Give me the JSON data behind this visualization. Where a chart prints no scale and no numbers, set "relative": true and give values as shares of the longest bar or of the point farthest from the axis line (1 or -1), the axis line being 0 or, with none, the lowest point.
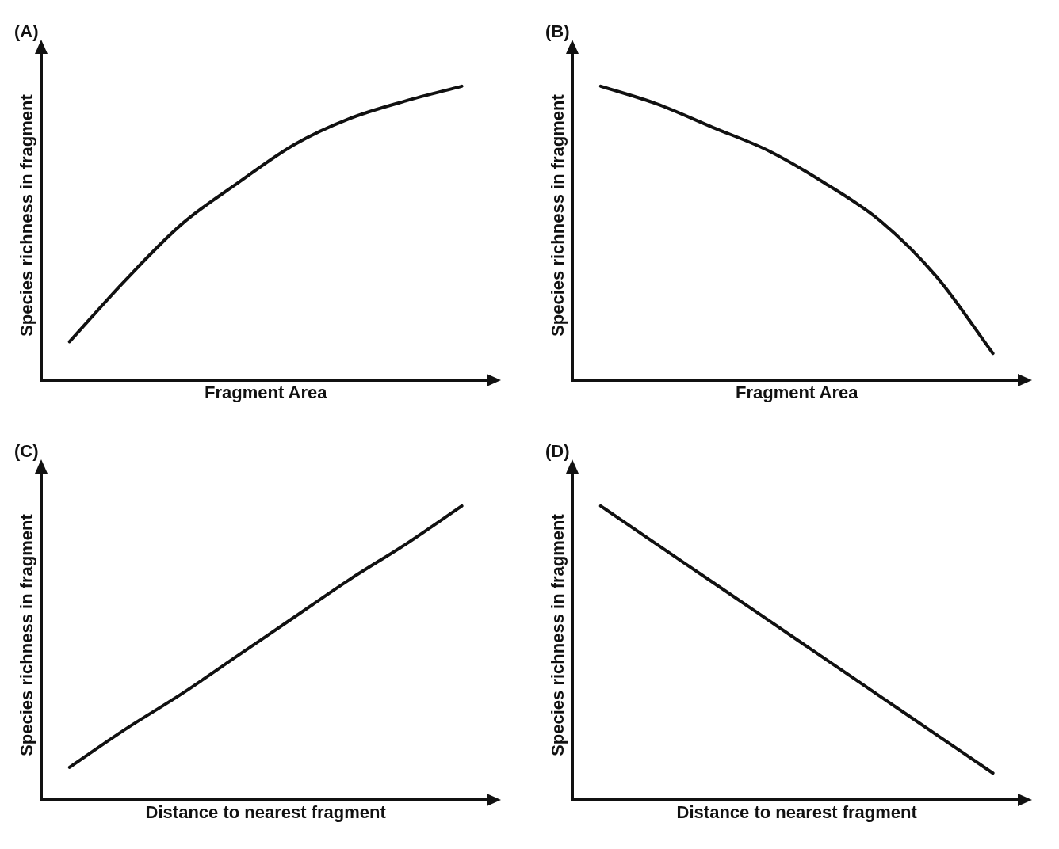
{
  "chart_data": [
    {
      "type": "line",
      "title": "(A)",
      "xlabel": "Fragment Area",
      "ylabel": "Species richness in fragment",
      "relative": true,
      "tick_labels": false,
      "categories": [
        null,
        null,
        null,
        null,
        null,
        null,
        null,
        null
      ],
      "series": [
        {
          "color": "#111111",
          "values": [
            0.13,
            0.34,
            0.53,
            0.67,
            0.8,
            0.89,
            0.95,
            1
          ]
        }
      ]
    },
    {
      "type": "line",
      "title": "(B)",
      "xlabel": "Fragment Area",
      "ylabel": "Species richness in fragment",
      "relative": true,
      "tick_labels": false,
      "categories": [
        null,
        null,
        null,
        null,
        null,
        null,
        null,
        null
      ],
      "series": [
        {
          "color": "#111111",
          "values": [
            1,
            0.94,
            0.86,
            0.78,
            0.67,
            0.54,
            0.35,
            0.09
          ]
        }
      ]
    },
    {
      "type": "line",
      "title": "(C)",
      "xlabel": "Distance to nearest fragment",
      "ylabel": "Species richness in fragment",
      "relative": true,
      "tick_labels": false,
      "categories": [
        null,
        null,
        null,
        null,
        null,
        null,
        null,
        null
      ],
      "series": [
        {
          "color": "#111111",
          "values": [
            0.11,
            0.24,
            0.36,
            0.49,
            0.62,
            0.75,
            0.87,
            1
          ]
        }
      ]
    },
    {
      "type": "line",
      "title": "(D)",
      "xlabel": "Distance to nearest fragment",
      "ylabel": "Species richness in fragment",
      "relative": true,
      "tick_labels": false,
      "categories": [
        null,
        null,
        null,
        null,
        null,
        null,
        null,
        null
      ],
      "series": [
        {
          "color": "#111111",
          "values": [
            1,
            0.87,
            0.74,
            0.61,
            0.48,
            0.35,
            0.22,
            0.09
          ]
        }
      ]
    }
  ]
}
